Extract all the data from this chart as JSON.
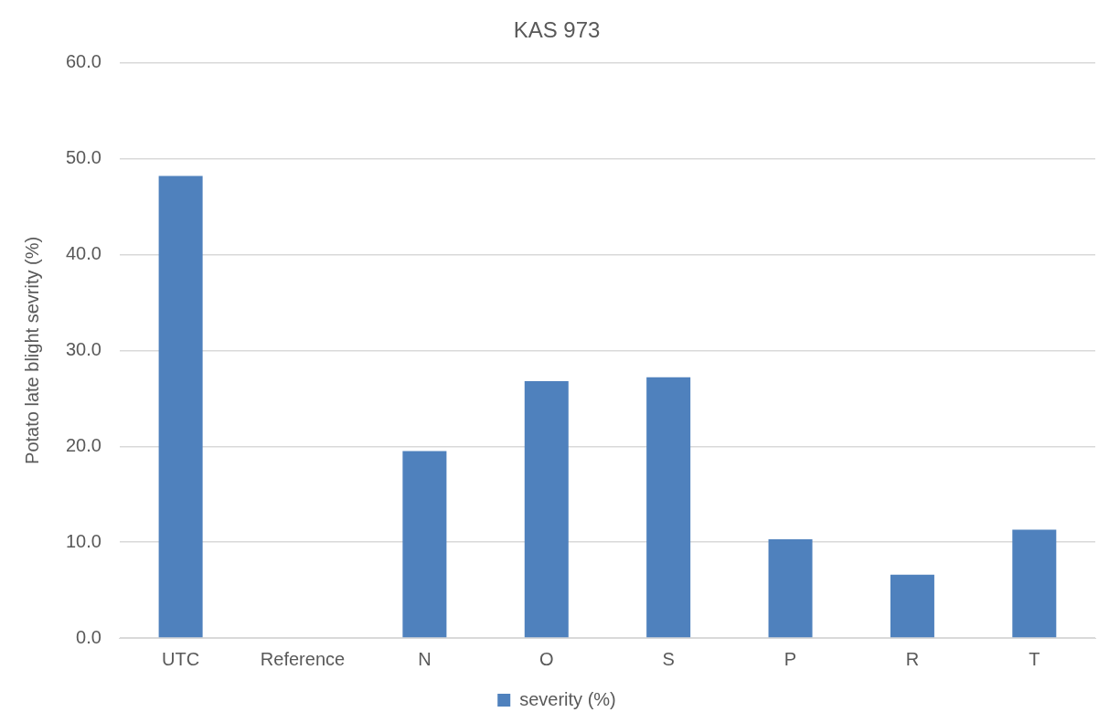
{
  "chart_data": {
    "type": "bar",
    "title": "KAS 973",
    "ylabel": "Potato late blight sevrity (%)",
    "categories": [
      "UTC",
      "Reference",
      "N",
      "O",
      "S",
      "P",
      "R",
      "T"
    ],
    "series": [
      {
        "name": "severity (%)",
        "color": "#4f81bd",
        "values": [
          48.2,
          0,
          19.5,
          26.8,
          27.2,
          10.3,
          6.6,
          11.3
        ]
      }
    ],
    "ylim": [
      0,
      60
    ],
    "yticks": [
      {
        "value": 0,
        "label": "0.0"
      },
      {
        "value": 10,
        "label": "10.0"
      },
      {
        "value": 20,
        "label": "20.0"
      },
      {
        "value": 30,
        "label": "30.0"
      },
      {
        "value": 40,
        "label": "40.0"
      },
      {
        "value": 50,
        "label": "50.0"
      },
      {
        "value": 60,
        "label": "60.0"
      }
    ],
    "grid": "y",
    "legend": "bottom"
  }
}
